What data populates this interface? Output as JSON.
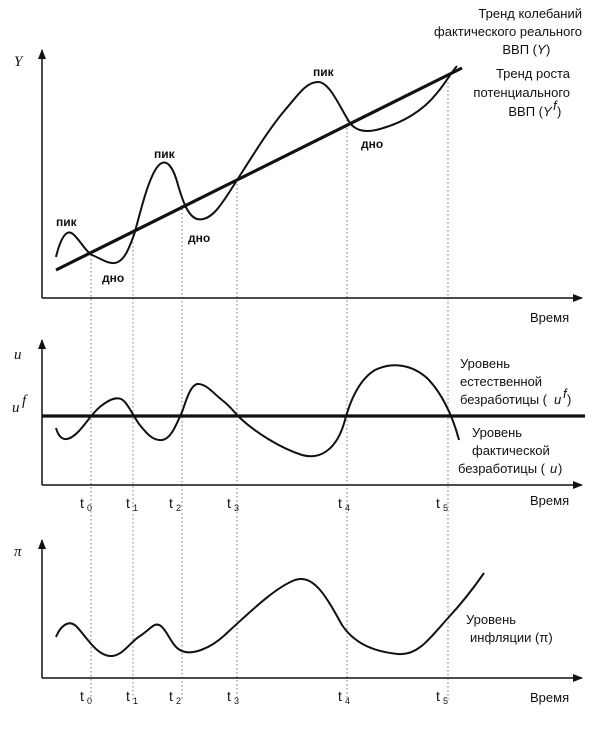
{
  "panel1": {
    "y_axis": "Y",
    "x_axis": "Время",
    "real_gdp_label": [
      "Тренд колебаний",
      "фактического реального",
      "ВВП ("
    ],
    "real_gdp_var": "Y",
    "potential_label": [
      "Тренд роста",
      "потенциального",
      "ВВП ("
    ],
    "potential_var": "Y",
    "potential_sup": "f",
    "peak": "пик",
    "trough": "дно"
  },
  "panel2": {
    "y_axis": "u",
    "uf": "u",
    "uf_sup": "f",
    "x_axis": "Время",
    "natural_label": [
      "Уровень",
      "естественной",
      "безработицы ("
    ],
    "natural_var": "u",
    "natural_sup": "f",
    "actual_label": [
      "Уровень",
      "фактической",
      "безработицы ("
    ],
    "actual_var": "u"
  },
  "panel3": {
    "y_axis": "π",
    "x_axis": "Время",
    "inflation_label": [
      "Уровень",
      "инфляции (π)"
    ]
  },
  "ticks": {
    "t0": "t",
    "t0s": "0",
    "t1": "t",
    "t1s": "1",
    "t2": "t",
    "t2s": "2",
    "t3": "t",
    "t3s": "3",
    "t4": "t",
    "t4s": "4",
    "t5": "t",
    "t5s": "5"
  }
}
